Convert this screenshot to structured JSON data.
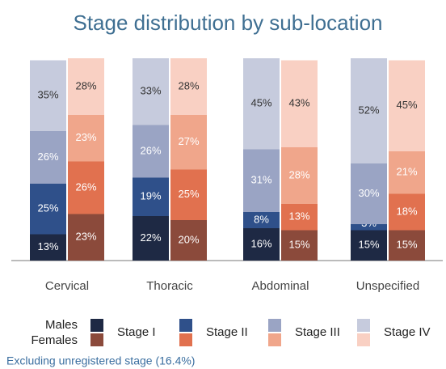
{
  "chart_data": {
    "type": "grouped-stacked-bar",
    "title": "Stage distribution by sub-location",
    "categories": [
      "Cervical",
      "Thoracic",
      "Abdominal",
      "Unspecified"
    ],
    "stages": [
      "Stage I",
      "Stage II",
      "Stage III",
      "Stage IV"
    ],
    "groups": [
      {
        "name": "Males",
        "colors": [
          "#1e2944",
          "#2f508a",
          "#9aa4c4",
          "#c6cbdd"
        ],
        "series": [
          {
            "values": [
              13,
              22,
              16,
              15
            ],
            "value_labels": [
              "13%",
              "22%",
              "16%",
              "15%"
            ]
          },
          {
            "values": [
              25,
              19,
              8,
              3
            ],
            "value_labels": [
              "25%",
              "19%",
              "8%",
              "3%"
            ]
          },
          {
            "values": [
              26,
              26,
              31,
              30
            ],
            "value_labels": [
              "26%",
              "26%",
              "31%",
              "30%"
            ]
          },
          {
            "values": [
              35,
              33,
              45,
              52
            ],
            "value_labels": [
              "35%",
              "33%",
              "45%",
              "52%"
            ]
          }
        ]
      },
      {
        "name": "Females",
        "colors": [
          "#8b4a3b",
          "#e1714f",
          "#f0a68b",
          "#f9d0c3"
        ],
        "series": [
          {
            "values": [
              23,
              20,
              15,
              15
            ],
            "value_labels": [
              "23%",
              "20%",
              "15%",
              "15%"
            ]
          },
          {
            "values": [
              26,
              25,
              13,
              18
            ],
            "value_labels": [
              "26%",
              "25%",
              "13%",
              "18%"
            ]
          },
          {
            "values": [
              23,
              27,
              28,
              21
            ],
            "value_labels": [
              "23%",
              "27%",
              "28%",
              "21%"
            ]
          },
          {
            "values": [
              28,
              28,
              43,
              45
            ],
            "value_labels": [
              "28%",
              "28%",
              "43%",
              "45%"
            ]
          }
        ]
      }
    ],
    "label_colors": [
      "#ffffff",
      "#ffffff",
      "#ffffff",
      "#333333"
    ],
    "ylim": [
      0,
      100
    ],
    "note": "Excluding unregistered stage (16.4%)"
  }
}
